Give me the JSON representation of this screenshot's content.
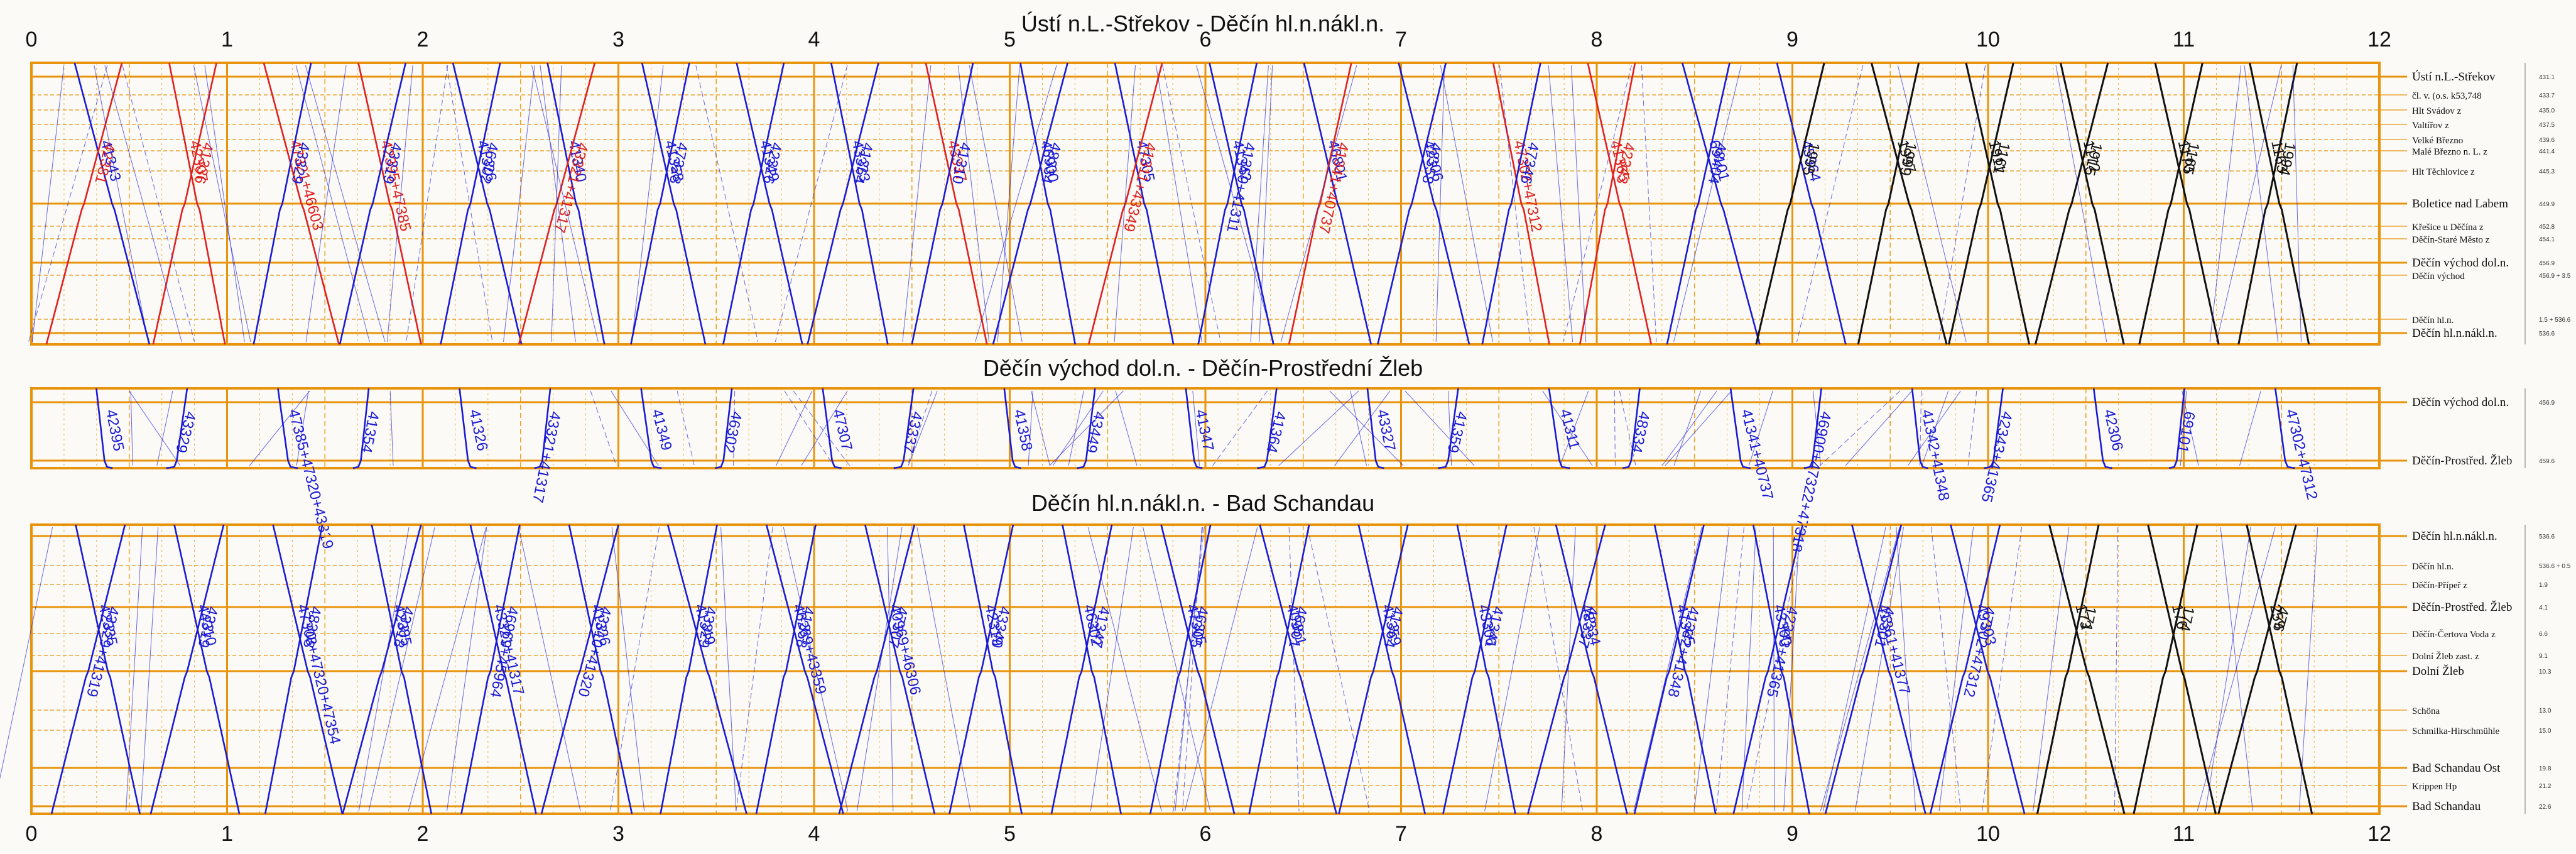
{
  "colors": {
    "grid": "#e8940c",
    "blue": "#1a1ad6",
    "red": "#e02020",
    "black": "#111111",
    "bg": "#fbfaf6"
  },
  "hours": [
    "0",
    "1",
    "2",
    "3",
    "4",
    "5",
    "6",
    "7",
    "8",
    "9",
    "10",
    "11",
    "12"
  ],
  "panels": [
    {
      "title": "Ústí n.L.-Střekov - Děčín hl.n.nákl.n.",
      "stations": [
        {
          "name": "Ústí n.L.-Střekov",
          "km": "431.1",
          "major": true
        },
        {
          "name": "čl. v. (o.s. k53,748",
          "km": "433.7",
          "major": false
        },
        {
          "name": "Hlt Svádov z",
          "km": "435.0",
          "major": false
        },
        {
          "name": "Valtířov z",
          "km": "437.5",
          "major": false
        },
        {
          "name": "Velké Březno",
          "km": "439.6",
          "major": false
        },
        {
          "name": "Malé Březno n. L. z",
          "km": "441.4",
          "major": false
        },
        {
          "name": "Hlt Těchlovice z",
          "km": "445.3",
          "major": false
        },
        {
          "name": "Boletice nad Labem",
          "km": "449.9",
          "major": true
        },
        {
          "name": "Křešice u Děčína z",
          "km": "452.8",
          "major": false
        },
        {
          "name": "Děčín-Staré Město z",
          "km": "454.1",
          "major": false
        },
        {
          "name": "Děčín východ dol.n.",
          "km": "456.9",
          "major": true
        },
        {
          "name": "Děčín východ",
          "km": "456.9 + 3.5",
          "major": false
        },
        {
          "name": "Děčín hl.n.",
          "km": "1.5 + 536.6",
          "major": false
        },
        {
          "name": "Děčín hl.n.nákl.n.",
          "km": "536.6",
          "major": true
        }
      ],
      "trains": [
        {
          "label": "41343",
          "color": "blue"
        },
        {
          "label": "42381",
          "color": "red"
        },
        {
          "label": "42307",
          "color": "red"
        },
        {
          "label": "41336",
          "color": "red"
        },
        {
          "label": "47321+46603",
          "color": "red"
        },
        {
          "label": "43329",
          "color": "blue"
        },
        {
          "label": "42395+47385",
          "color": "red"
        },
        {
          "label": "43319",
          "color": "blue"
        },
        {
          "label": "41326",
          "color": "blue"
        },
        {
          "label": "46302",
          "color": "blue"
        },
        {
          "label": "41340",
          "color": "blue"
        },
        {
          "label": "43321+41317",
          "color": "red"
        },
        {
          "label": "41358",
          "color": "blue"
        },
        {
          "label": "47328",
          "color": "blue"
        },
        {
          "label": "41349",
          "color": "blue"
        },
        {
          "label": "42326",
          "color": "blue"
        },
        {
          "label": "43323",
          "color": "blue"
        },
        {
          "label": "41364",
          "color": "blue"
        },
        {
          "label": "43337",
          "color": "red"
        },
        {
          "label": "41310",
          "color": "blue"
        },
        {
          "label": "46900",
          "color": "blue"
        },
        {
          "label": "48334",
          "color": "blue"
        },
        {
          "label": "47305",
          "color": "blue"
        },
        {
          "label": "41311+43349",
          "color": "red"
        },
        {
          "label": "41342",
          "color": "blue"
        },
        {
          "label": "41359+41311",
          "color": "blue"
        },
        {
          "label": "46801",
          "color": "blue"
        },
        {
          "label": "41341+40737",
          "color": "red"
        },
        {
          "label": "42306",
          "color": "blue"
        },
        {
          "label": "48358",
          "color": "blue"
        },
        {
          "label": "47302+47312",
          "color": "red"
        },
        {
          "label": "47346",
          "color": "blue"
        },
        {
          "label": "41365",
          "color": "red"
        },
        {
          "label": "42343",
          "color": "red"
        },
        {
          "label": "69101",
          "color": "blue"
        },
        {
          "label": "48404",
          "color": "blue"
        },
        {
          "label": "45964",
          "color": "blue"
        },
        {
          "label": "1995",
          "color": "black"
        },
        {
          "label": "1997",
          "color": "black"
        },
        {
          "label": "1999",
          "color": "black"
        },
        {
          "label": "1911",
          "color": "black"
        },
        {
          "label": "1161",
          "color": "black"
        },
        {
          "label": "1172",
          "color": "black"
        },
        {
          "label": "1915",
          "color": "black"
        },
        {
          "label": "1170",
          "color": "black"
        },
        {
          "label": "1165",
          "color": "black"
        },
        {
          "label": "1163",
          "color": "black"
        },
        {
          "label": "1994",
          "color": "black"
        }
      ]
    },
    {
      "title": "Děčín východ dol.n. - Děčín-Prostřední Žleb",
      "stations": [
        {
          "name": "Děčín východ dol.n.",
          "km": "456.9",
          "major": true
        },
        {
          "name": "Děčín-Prostřed. Žleb",
          "km": "459.6",
          "major": true
        }
      ],
      "trains": [
        {
          "label": "42395",
          "color": "blue"
        },
        {
          "label": "43329",
          "color": "blue"
        },
        {
          "label": "47385+47320+43319",
          "color": "blue"
        },
        {
          "label": "41354",
          "color": "blue"
        },
        {
          "label": "41326",
          "color": "blue"
        },
        {
          "label": "43321+41317",
          "color": "blue"
        },
        {
          "label": "41349",
          "color": "blue"
        },
        {
          "label": "46302",
          "color": "blue"
        },
        {
          "label": "47307",
          "color": "blue"
        },
        {
          "label": "43337",
          "color": "blue"
        },
        {
          "label": "41358",
          "color": "blue"
        },
        {
          "label": "43449",
          "color": "blue"
        },
        {
          "label": "41347",
          "color": "blue"
        },
        {
          "label": "41364",
          "color": "blue"
        },
        {
          "label": "43327",
          "color": "blue"
        },
        {
          "label": "41359",
          "color": "blue"
        },
        {
          "label": "41311",
          "color": "blue"
        },
        {
          "label": "48334",
          "color": "blue"
        },
        {
          "label": "41341+40737",
          "color": "blue"
        },
        {
          "label": "46900+47322+47318",
          "color": "blue"
        },
        {
          "label": "41342+41348",
          "color": "blue"
        },
        {
          "label": "42343+41365",
          "color": "blue"
        },
        {
          "label": "42306",
          "color": "blue"
        },
        {
          "label": "69101",
          "color": "blue"
        },
        {
          "label": "47302+47312",
          "color": "blue"
        }
      ]
    },
    {
      "title": "Děčín hl.n.nákl.n. - Bad Schandau",
      "stations": [
        {
          "name": "Děčín hl.n.nákl.n.",
          "km": "536.6",
          "major": true
        },
        {
          "name": "Děčín hl.n.",
          "km": "536.6 + 0.5",
          "major": false
        },
        {
          "name": "Děčín-Přípeř z",
          "km": "1.9",
          "major": false
        },
        {
          "name": "Děčín-Prostřed. Žleb",
          "km": "4.1",
          "major": true
        },
        {
          "name": "Děčín-Čertova Voda z",
          "km": "6.6",
          "major": false
        },
        {
          "name": "Dolní Žleb zast. z",
          "km": "9.1",
          "major": false
        },
        {
          "name": "Dolní Žleb",
          "km": "10.3",
          "major": true
        },
        {
          "name": "Schöna",
          "km": "13.0",
          "major": false
        },
        {
          "name": "Schmilka-Hirschmühle",
          "km": "15.0",
          "major": false
        },
        {
          "name": "Bad Schandau Ost",
          "km": "19.8",
          "major": true
        },
        {
          "name": "Krippen Hp",
          "km": "21.2",
          "major": false
        },
        {
          "name": "Bad Schandau",
          "km": "22.6",
          "major": true
        }
      ],
      "trains": [
        {
          "label": "42335",
          "color": "blue"
        },
        {
          "label": "43329+41319",
          "color": "blue"
        },
        {
          "label": "44310",
          "color": "blue"
        },
        {
          "label": "43319",
          "color": "blue"
        },
        {
          "label": "47308+47320+47354",
          "color": "blue"
        },
        {
          "label": "48308",
          "color": "blue"
        },
        {
          "label": "42385",
          "color": "blue"
        },
        {
          "label": "43318",
          "color": "blue"
        },
        {
          "label": "43321+41317",
          "color": "blue"
        },
        {
          "label": "46969+45964",
          "color": "blue"
        },
        {
          "label": "41326",
          "color": "blue"
        },
        {
          "label": "43310+41320",
          "color": "blue"
        },
        {
          "label": "41349",
          "color": "blue"
        },
        {
          "label": "43329",
          "color": "blue"
        },
        {
          "label": "46269+43359",
          "color": "blue"
        },
        {
          "label": "41358",
          "color": "blue"
        },
        {
          "label": "40969+46306",
          "color": "blue"
        },
        {
          "label": "47307",
          "color": "blue"
        },
        {
          "label": "42319",
          "color": "blue"
        },
        {
          "label": "43340",
          "color": "blue"
        },
        {
          "label": "46302",
          "color": "blue"
        },
        {
          "label": "41347",
          "color": "blue"
        },
        {
          "label": "47305",
          "color": "blue"
        },
        {
          "label": "46305",
          "color": "blue"
        },
        {
          "label": "40951",
          "color": "blue"
        },
        {
          "label": "46801",
          "color": "blue"
        },
        {
          "label": "41359",
          "color": "blue"
        },
        {
          "label": "41364",
          "color": "blue"
        },
        {
          "label": "43306",
          "color": "blue"
        },
        {
          "label": "41341",
          "color": "blue"
        },
        {
          "label": "48334",
          "color": "blue"
        },
        {
          "label": "42337",
          "color": "blue"
        },
        {
          "label": "47365",
          "color": "blue"
        },
        {
          "label": "41342+41348",
          "color": "blue"
        },
        {
          "label": "43300",
          "color": "blue"
        },
        {
          "label": "42343+41365",
          "color": "blue"
        },
        {
          "label": "41361+41377",
          "color": "blue"
        },
        {
          "label": "43301",
          "color": "blue"
        },
        {
          "label": "49303",
          "color": "blue"
        },
        {
          "label": "47302+47312",
          "color": "blue"
        },
        {
          "label": "173",
          "color": "black"
        },
        {
          "label": "171",
          "color": "black"
        },
        {
          "label": "176",
          "color": "black"
        },
        {
          "label": "174",
          "color": "black"
        },
        {
          "label": "259",
          "color": "black"
        },
        {
          "label": "476",
          "color": "black"
        }
      ]
    }
  ]
}
